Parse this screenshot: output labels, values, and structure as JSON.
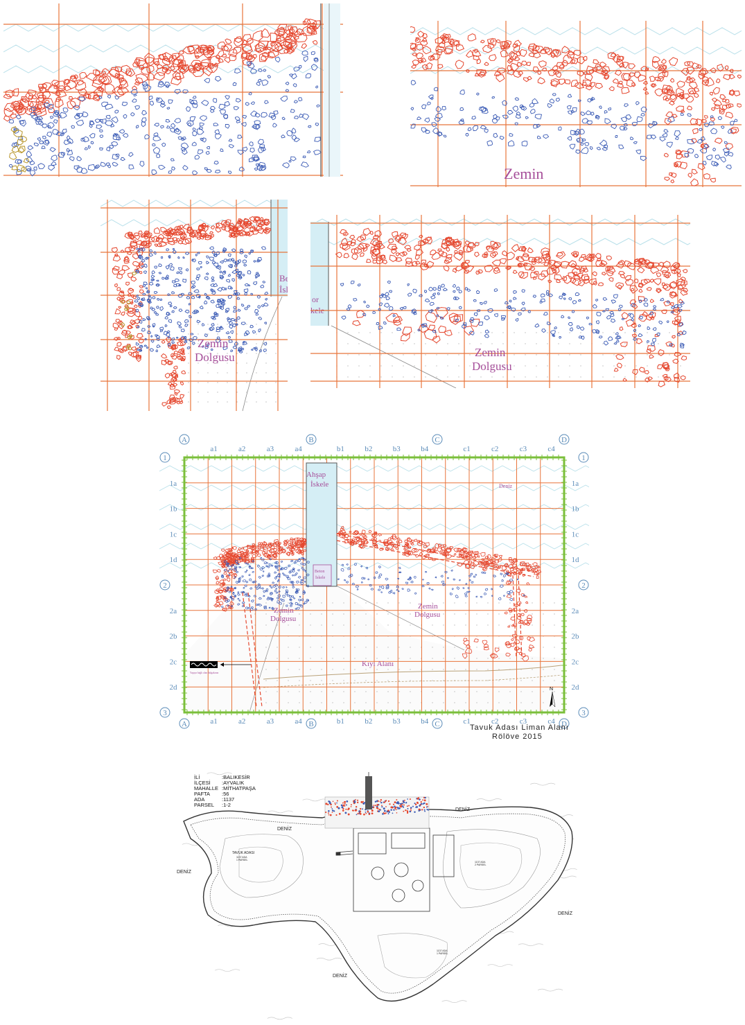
{
  "panel_top_left": {},
  "panel_top_right": {
    "label": "Zemin"
  },
  "panel_mid_left": {
    "label_line1": "Zemin",
    "label_line2": "Dolgusu",
    "edge_text_1": "Be",
    "edge_text_2": "İsl"
  },
  "panel_mid_right": {
    "label_line1": "Zemin",
    "label_line2": "Dolgusu",
    "edge_text_1": "or",
    "edge_text_2": "kele"
  },
  "site_plan": {
    "column_markers": [
      "A",
      "B",
      "C",
      "D"
    ],
    "sub_columns": [
      "a1",
      "a2",
      "a3",
      "a4",
      "b1",
      "b2",
      "b3",
      "b4",
      "c1",
      "c2",
      "c3",
      "c4"
    ],
    "row_markers": [
      "1",
      "2",
      "3"
    ],
    "sub_rows": [
      "1a",
      "1b",
      "1c",
      "1d",
      "2a",
      "2b",
      "2c",
      "2d"
    ],
    "pier_label_1": "Ahşap",
    "pier_label_2": "İskele",
    "concrete_pier_label_1": "Beton",
    "concrete_pier_label_2": "İskele",
    "sea_label": "Deniz",
    "fill_left_1": "Zemin",
    "fill_left_2": "Dolgusu",
    "fill_right_1": "Zemin",
    "fill_right_2": "Dolgusu",
    "shore_label": "Kıyı Alanı",
    "legend_caption": "Yapıya bağlı olan dalgakıran",
    "north_label": "N",
    "title_line1": "Tavuk Adası Liman Alanı",
    "title_line2": "Rölöve 2015"
  },
  "island_map": {
    "info_rows": [
      {
        "key": "İLİ",
        "value": ":BALIKESİR"
      },
      {
        "key": "İLÇESİ",
        "value": ":AYVALIK"
      },
      {
        "key": "MAHALLE",
        "value": ":MİTHATPAŞA"
      },
      {
        "key": "PAFTA",
        "value": ":56"
      },
      {
        "key": "ADA",
        "value": ":1137"
      },
      {
        "key": "PARSEL",
        "value": ":1-2"
      }
    ],
    "sea_labels": [
      "DENİZ",
      "DENİZ",
      "DENİZ",
      "DENİZ",
      "DENİZ"
    ],
    "island_name": "TAVUK ADASI",
    "parcel_1": "1137 ADA",
    "parcel_1b": "1 PARSEL",
    "parcel_2": "1137 ADA",
    "parcel_2b": "2 PARSEL",
    "parcel_3": "1137 ADA",
    "parcel_3b": "1 PARSEL"
  },
  "colors": {
    "grid_orange": "#e8743b",
    "stone_red": "#e5472e",
    "stone_blue": "#3b5bb5",
    "wave_cyan": "#9fd3e0",
    "label_purple": "#a64f9a",
    "frame_green": "#7bbf3b",
    "grid_label_blue": "#5a8bb8"
  }
}
